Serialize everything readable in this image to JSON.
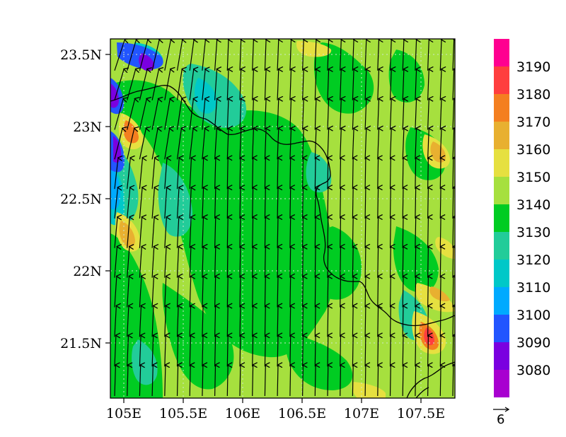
{
  "map": {
    "x_ticks": [
      "105E",
      "105.5E",
      "106E",
      "106.5E",
      "107E",
      "107.5E"
    ],
    "y_ticks": [
      "23.5N",
      "23N",
      "22.5N",
      "22N",
      "21.5N"
    ],
    "lon_range": [
      104.9,
      107.8
    ],
    "lat_range": [
      21.1,
      23.6
    ]
  },
  "colorbar": {
    "levels": [
      "3190",
      "3180",
      "3170",
      "3160",
      "3150",
      "3140",
      "3130",
      "3120",
      "3110",
      "3100",
      "3090",
      "3080"
    ],
    "colors": [
      "#ff0090",
      "#ff3e3e",
      "#f47f20",
      "#e8b030",
      "#e6e040",
      "#a6e03e",
      "#00cc22",
      "#22cc99",
      "#00c8c8",
      "#00aaff",
      "#2255ff",
      "#7a00e0",
      "#a800d0"
    ]
  },
  "vector_reference": {
    "label": "6"
  },
  "field": {
    "base_color": "#a6e03e",
    "green_color": "#00cc22",
    "teal_color": "#22cc99"
  }
}
